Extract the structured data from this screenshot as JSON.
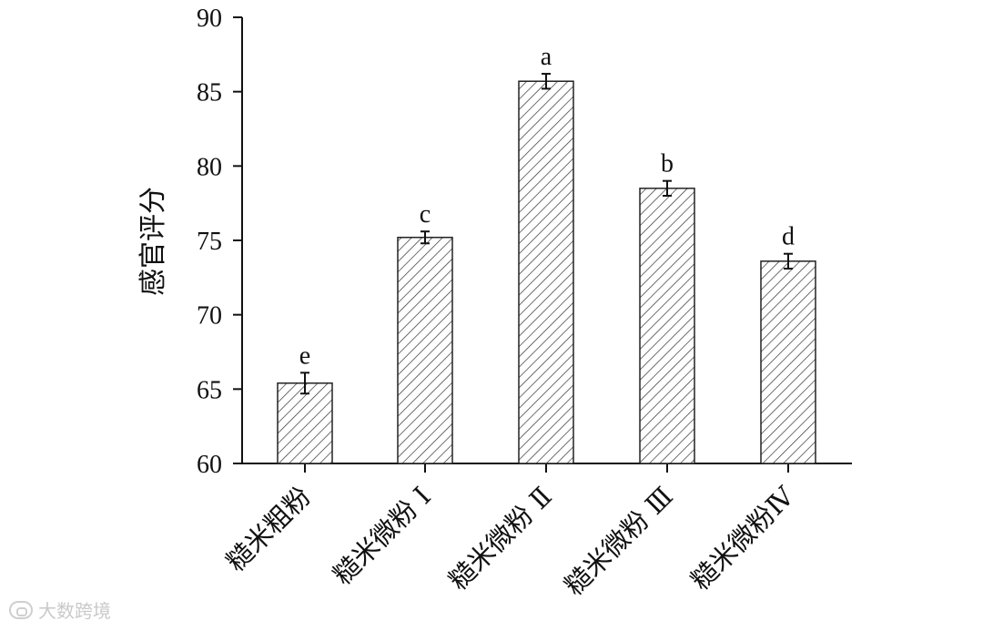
{
  "chart_data": {
    "type": "bar",
    "categories": [
      "糙米粗粉",
      "糙米微粉 Ⅰ",
      "糙米微粉 Ⅱ",
      "糙米微粉 Ⅲ",
      "糙米微粉Ⅳ"
    ],
    "series": [
      {
        "values": [
          65.4,
          75.2,
          85.7,
          78.5,
          73.6
        ],
        "errors": [
          0.7,
          0.4,
          0.5,
          0.5,
          0.5
        ],
        "significance": [
          "e",
          "c",
          "a",
          "b",
          "d"
        ]
      }
    ],
    "title": "",
    "xlabel": "",
    "ylabel": "感官评分",
    "ylim": [
      60,
      90
    ],
    "yticks": [
      60,
      65,
      70,
      75,
      80,
      85,
      90
    ],
    "grid": false,
    "legend": "none",
    "bar_fill": "diagonal-hatch",
    "colors": {
      "bar_edge": "#222222",
      "hatch": "#333333",
      "axis": "#111111"
    }
  },
  "watermark": {
    "text": "大数跨境"
  }
}
